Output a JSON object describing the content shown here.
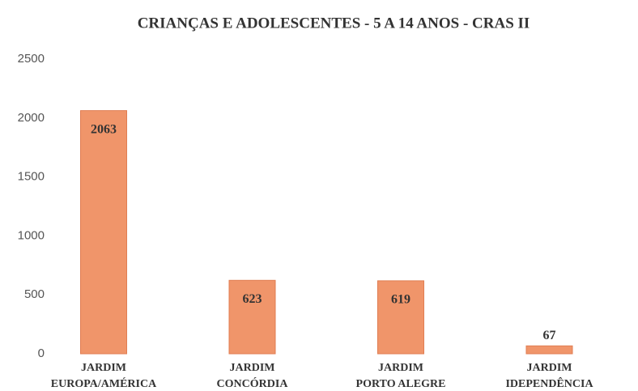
{
  "chart_data": {
    "type": "bar",
    "title": "CRIANÇAS E ADOLESCENTES - 5 A 14 ANOS - CRAS II",
    "categories": [
      "JARDIM\nEUROPA/AMÉRICA",
      "JARDIM\nCONCÓRDIA",
      "JARDIM\nPORTO ALEGRE",
      "JARDIM\nIDEPENDÊNCIA"
    ],
    "values": [
      2063,
      623,
      619,
      67
    ],
    "color": "#f0956a",
    "ylim": [
      0,
      2500
    ],
    "yticks": [
      0,
      500,
      1000,
      1500,
      2000,
      2500
    ],
    "grid": false
  }
}
